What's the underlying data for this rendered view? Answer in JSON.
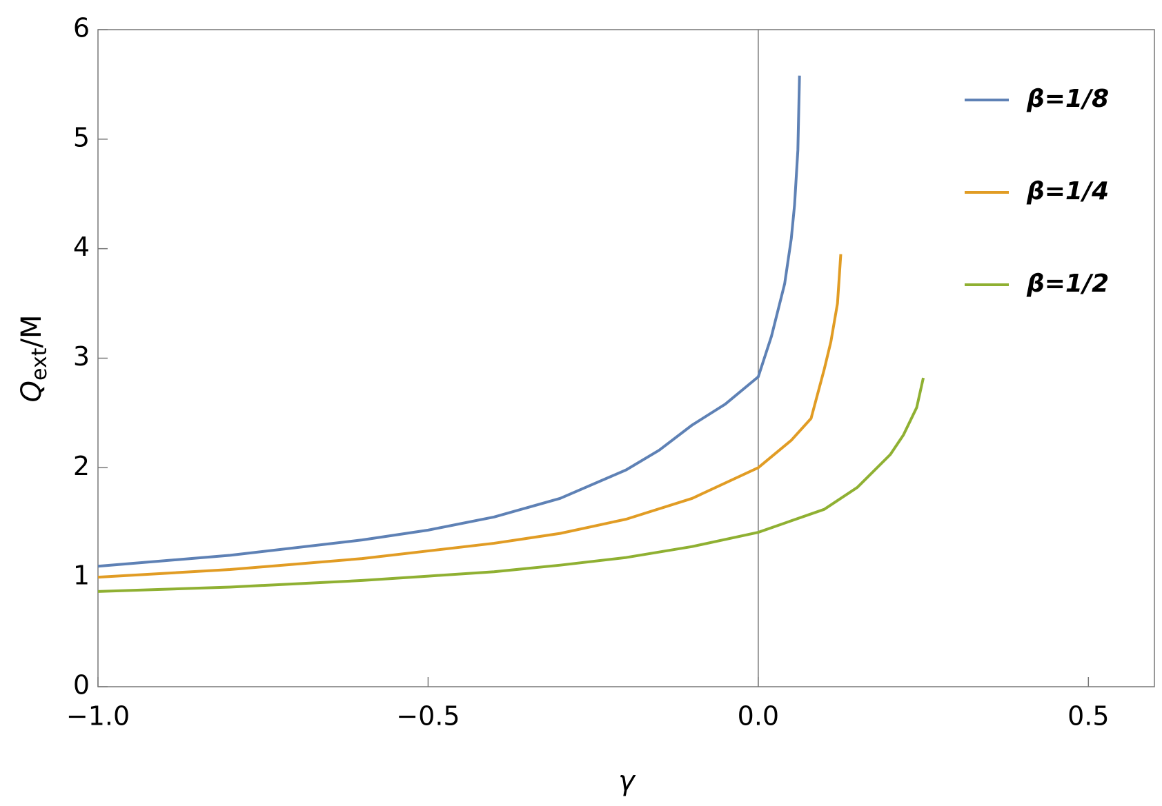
{
  "chart_data": {
    "type": "line",
    "x_label": "γ",
    "y_label": {
      "main": "Q",
      "sub": "ext",
      "rest": "/M"
    },
    "xlim": [
      -1.0,
      0.6
    ],
    "ylim": [
      0,
      6
    ],
    "xticks": [
      {
        "value": -1.0,
        "label": "−1.0"
      },
      {
        "value": -0.5,
        "label": "−0.5"
      },
      {
        "value": 0,
        "label": "0.0"
      },
      0.5
    ],
    "yticks": [
      0,
      1,
      2,
      3,
      4,
      5,
      6
    ],
    "series": [
      {
        "name": "β=1/8",
        "color": "#5e81b5",
        "x": [
          -1,
          -0.8,
          -0.6,
          -0.5,
          -0.4,
          -0.3,
          -0.2,
          -0.15,
          -0.1,
          -0.05,
          0,
          0.02,
          0.04,
          0.05,
          0.055,
          0.06,
          0.0625
        ],
        "values": [
          1.1,
          1.2,
          1.34,
          1.43,
          1.55,
          1.72,
          1.98,
          2.16,
          2.39,
          2.58,
          2.83,
          3.2,
          3.68,
          4.09,
          4.4,
          4.9,
          5.58
        ]
      },
      {
        "name": "β=1/4",
        "color": "#e19c24",
        "x": [
          -1,
          -0.8,
          -0.6,
          -0.5,
          -0.4,
          -0.3,
          -0.2,
          -0.1,
          0,
          0.05,
          0.08,
          0.1,
          0.11,
          0.12,
          0.125
        ],
        "values": [
          1.0,
          1.07,
          1.17,
          1.24,
          1.31,
          1.4,
          1.53,
          1.72,
          2.0,
          2.25,
          2.45,
          2.9,
          3.15,
          3.5,
          3.95
        ]
      },
      {
        "name": "β=1/2",
        "color": "#8fb032",
        "x": [
          -1,
          -0.8,
          -0.6,
          -0.5,
          -0.4,
          -0.3,
          -0.2,
          -0.1,
          0,
          0.1,
          0.15,
          0.2,
          0.22,
          0.24,
          0.25
        ],
        "values": [
          0.87,
          0.91,
          0.97,
          1.01,
          1.05,
          1.11,
          1.18,
          1.28,
          1.41,
          1.62,
          1.82,
          2.12,
          2.3,
          2.55,
          2.82
        ]
      }
    ]
  }
}
